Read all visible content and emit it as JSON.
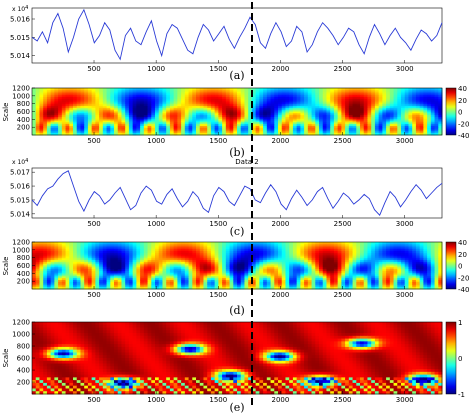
{
  "figure": {
    "divider_label": "Data 2",
    "scale_label": "Scale"
  },
  "chart_data": [
    {
      "id": "a",
      "type": "line",
      "label": "(a)",
      "x_ticks": [
        500,
        1000,
        1500,
        2000,
        2500,
        3000
      ],
      "y_ticks": [
        5.014,
        5.015,
        5.016
      ],
      "y_multiplier": "x 10",
      "y_exponent": "4",
      "xlim": [
        1,
        3300
      ],
      "ylim": [
        5.0136,
        5.0166
      ],
      "series": [
        {
          "values": [
            5.015,
            5.0148,
            5.0153,
            5.0147,
            5.0158,
            5.0163,
            5.0155,
            5.0142,
            5.015,
            5.016,
            5.0165,
            5.0157,
            5.0147,
            5.0151,
            5.0158,
            5.0154,
            5.0143,
            5.0138,
            5.0151,
            5.0155,
            5.0148,
            5.0146,
            5.0153,
            5.0159,
            5.0148,
            5.014,
            5.0152,
            5.0157,
            5.0155,
            5.0149,
            5.0143,
            5.0141,
            5.015,
            5.0157,
            5.0154,
            5.0148,
            5.0152,
            5.0156,
            5.0149,
            5.0144,
            5.015,
            5.0155,
            5.0161,
            5.0157,
            5.0147,
            5.0144,
            5.0152,
            5.0158,
            5.0153,
            5.0145,
            5.0148,
            5.0156,
            5.0153,
            5.0142,
            5.0146,
            5.0153,
            5.0158,
            5.0155,
            5.0151,
            5.0146,
            5.015,
            5.0155,
            5.0153,
            5.0146,
            5.0141,
            5.015,
            5.0157,
            5.0152,
            5.0146,
            5.0151,
            5.0155,
            5.015,
            5.0147,
            5.0143,
            5.0149,
            5.0154,
            5.0152,
            5.0148,
            5.0151,
            5.0158
          ]
        }
      ]
    },
    {
      "id": "b",
      "type": "heatmap",
      "label": "(b)",
      "x_ticks": [
        500,
        1000,
        1500,
        2000,
        2500,
        3000
      ],
      "y_ticks": [
        200,
        400,
        600,
        800,
        1000,
        1200
      ],
      "xlim": [
        1,
        3300
      ],
      "ylim": [
        1,
        1200
      ],
      "colorbar_ticks": [
        40,
        20,
        0,
        -20,
        -40
      ],
      "colormap": "jet",
      "value_range": [
        -40,
        40
      ],
      "ylabel": "Scale"
    },
    {
      "id": "c",
      "type": "line",
      "label": "(c)",
      "x_ticks": [
        500,
        1000,
        1500,
        2000,
        2500,
        3000
      ],
      "y_ticks": [
        5.014,
        5.015,
        5.016,
        5.017
      ],
      "y_multiplier": "x 10",
      "y_exponent": "4",
      "xlim": [
        1,
        3300
      ],
      "ylim": [
        5.0137,
        5.0173
      ],
      "series": [
        {
          "values": [
            5.015,
            5.0146,
            5.0153,
            5.0158,
            5.016,
            5.0165,
            5.0169,
            5.0171,
            5.016,
            5.0149,
            5.0142,
            5.015,
            5.0156,
            5.0153,
            5.0147,
            5.015,
            5.0155,
            5.0159,
            5.0151,
            5.0143,
            5.0146,
            5.0155,
            5.016,
            5.0157,
            5.0149,
            5.0147,
            5.0154,
            5.0158,
            5.0151,
            5.0145,
            5.0149,
            5.0156,
            5.0152,
            5.0144,
            5.0141,
            5.0153,
            5.0159,
            5.0156,
            5.0149,
            5.0146,
            5.0153,
            5.016,
            5.0158,
            5.015,
            5.0148,
            5.0155,
            5.0161,
            5.0156,
            5.0147,
            5.0143,
            5.0151,
            5.0157,
            5.0152,
            5.0146,
            5.015,
            5.0156,
            5.0159,
            5.0151,
            5.0144,
            5.0149,
            5.0155,
            5.0152,
            5.0147,
            5.015,
            5.0154,
            5.0151,
            5.0143,
            5.0139,
            5.0148,
            5.0156,
            5.0152,
            5.0145,
            5.015,
            5.0156,
            5.0161,
            5.0157,
            5.0151,
            5.0155,
            5.0159,
            5.0162
          ]
        }
      ]
    },
    {
      "id": "d",
      "type": "heatmap",
      "label": "(d)",
      "x_ticks": [
        500,
        1000,
        1500,
        2000,
        2500,
        3000
      ],
      "y_ticks": [
        200,
        400,
        600,
        800,
        1000,
        1200
      ],
      "xlim": [
        1,
        3300
      ],
      "ylim": [
        1,
        1200
      ],
      "colorbar_ticks": [
        40,
        20,
        0,
        -20,
        -40
      ],
      "colormap": "jet",
      "value_range": [
        -40,
        40
      ],
      "ylabel": "Scale"
    },
    {
      "id": "e",
      "type": "heatmap",
      "label": "(e)",
      "x_ticks": [
        500,
        1000,
        1500,
        2000,
        2500,
        3000
      ],
      "y_ticks": [
        200,
        400,
        600,
        800,
        1000,
        1200
      ],
      "xlim": [
        1,
        3300
      ],
      "ylim": [
        1,
        1200
      ],
      "colorbar_ticks": [
        1,
        0,
        -1
      ],
      "colormap": "jet",
      "value_range": [
        -1,
        1
      ],
      "ylabel": "Scale"
    }
  ]
}
